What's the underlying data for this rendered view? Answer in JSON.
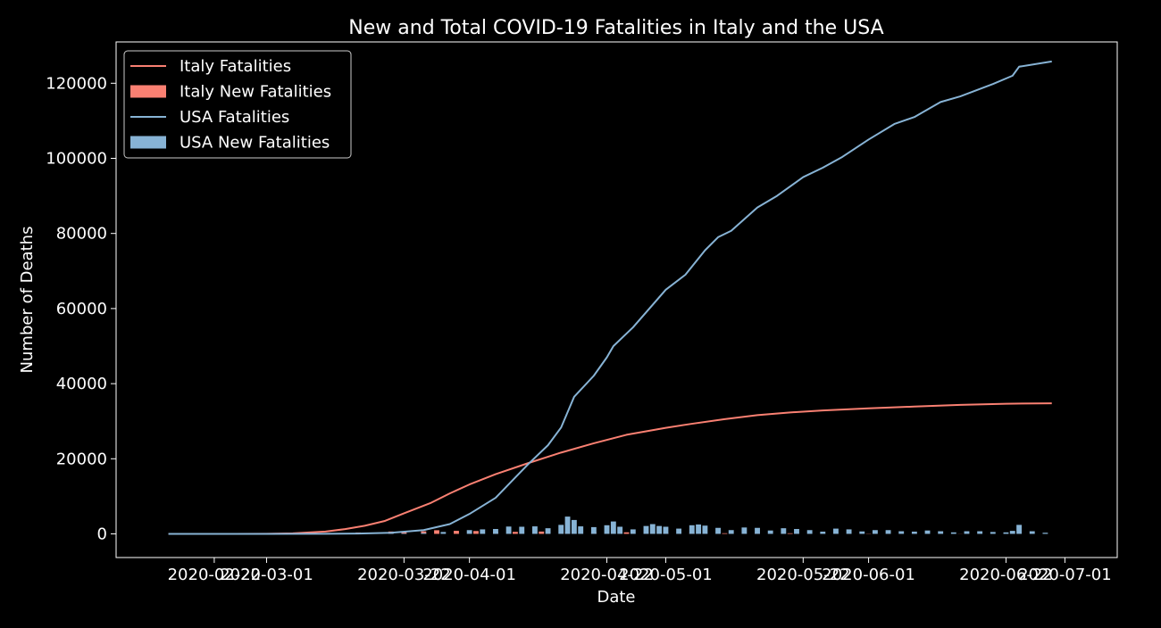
{
  "chart_data": {
    "type": "line",
    "title": "New and Total COVID-19 Fatalities in Italy and the USA",
    "xlabel": "Date",
    "ylabel": "Number of Deaths",
    "x_range": [
      "2020-02-07",
      "2020-07-09"
    ],
    "ylim": [
      -6300,
      131000
    ],
    "x_ticks": [
      "2020-02-22",
      "2020-03-01",
      "2020-03-22",
      "2020-04-01",
      "2020-04-22",
      "2020-05-01",
      "2020-05-22",
      "2020-06-01",
      "2020-06-22",
      "2020-07-01"
    ],
    "y_ticks": [
      0,
      20000,
      40000,
      60000,
      80000,
      100000,
      120000
    ],
    "grid": false,
    "legend_position": "top-left",
    "colors": {
      "italy": "#fa8072",
      "usa": "#87b3d5",
      "background": "#000000",
      "text": "#ffffff"
    },
    "legend": [
      {
        "label": "Italy Fatalities",
        "kind": "line",
        "color": "#fa8072"
      },
      {
        "label": "Italy New Fatalities",
        "kind": "bar",
        "color": "#fa8072"
      },
      {
        "label": "USA Fatalities",
        "kind": "line",
        "color": "#87b3d5"
      },
      {
        "label": "USA New Fatalities",
        "kind": "bar",
        "color": "#87b3d5"
      }
    ],
    "series": [
      {
        "name": "Italy Fatalities",
        "type": "line",
        "color": "#fa8072",
        "points": [
          [
            "2020-02-15",
            0
          ],
          [
            "2020-02-25",
            10
          ],
          [
            "2020-03-01",
            34
          ],
          [
            "2020-03-05",
            148
          ],
          [
            "2020-03-10",
            631
          ],
          [
            "2020-03-13",
            1266
          ],
          [
            "2020-03-16",
            2158
          ],
          [
            "2020-03-19",
            3405
          ],
          [
            "2020-03-22",
            5476
          ],
          [
            "2020-03-26",
            8165
          ],
          [
            "2020-03-29",
            10779
          ],
          [
            "2020-04-01",
            13155
          ],
          [
            "2020-04-05",
            15887
          ],
          [
            "2020-04-10",
            18849
          ],
          [
            "2020-04-15",
            21645
          ],
          [
            "2020-04-20",
            24114
          ],
          [
            "2020-04-25",
            26384
          ],
          [
            "2020-05-01",
            28236
          ],
          [
            "2020-05-05",
            29315
          ],
          [
            "2020-05-10",
            30560
          ],
          [
            "2020-05-15",
            31610
          ],
          [
            "2020-05-20",
            32330
          ],
          [
            "2020-05-25",
            32877
          ],
          [
            "2020-06-01",
            33415
          ],
          [
            "2020-06-08",
            33899
          ],
          [
            "2020-06-15",
            34345
          ],
          [
            "2020-06-22",
            34657
          ],
          [
            "2020-06-29",
            34767
          ]
        ]
      },
      {
        "name": "USA Fatalities",
        "type": "line",
        "color": "#87b3d5",
        "points": [
          [
            "2020-02-15",
            0
          ],
          [
            "2020-03-01",
            1
          ],
          [
            "2020-03-10",
            30
          ],
          [
            "2020-03-15",
            70
          ],
          [
            "2020-03-20",
            300
          ],
          [
            "2020-03-25",
            1000
          ],
          [
            "2020-03-29",
            2600
          ],
          [
            "2020-04-01",
            5300
          ],
          [
            "2020-04-05",
            9600
          ],
          [
            "2020-04-10",
            18600
          ],
          [
            "2020-04-13",
            23600
          ],
          [
            "2020-04-15",
            28300
          ],
          [
            "2020-04-17",
            36500
          ],
          [
            "2020-04-20",
            42100
          ],
          [
            "2020-04-22",
            47000
          ],
          [
            "2020-04-23",
            50000
          ],
          [
            "2020-04-26",
            55000
          ],
          [
            "2020-04-29",
            61000
          ],
          [
            "2020-05-01",
            65000
          ],
          [
            "2020-05-04",
            69000
          ],
          [
            "2020-05-07",
            75500
          ],
          [
            "2020-05-09",
            79000
          ],
          [
            "2020-05-11",
            80700
          ],
          [
            "2020-05-15",
            86900
          ],
          [
            "2020-05-18",
            90000
          ],
          [
            "2020-05-22",
            95000
          ],
          [
            "2020-05-25",
            97500
          ],
          [
            "2020-05-28",
            100400
          ],
          [
            "2020-06-01",
            105000
          ],
          [
            "2020-06-05",
            109200
          ],
          [
            "2020-06-08",
            111000
          ],
          [
            "2020-06-12",
            115000
          ],
          [
            "2020-06-15",
            116500
          ],
          [
            "2020-06-20",
            119800
          ],
          [
            "2020-06-23",
            122000
          ],
          [
            "2020-06-24",
            124400
          ],
          [
            "2020-06-29",
            125800
          ]
        ]
      },
      {
        "name": "Italy New Fatalities",
        "type": "bar",
        "color": "#fa8072",
        "points": [
          [
            "2020-03-10",
            168
          ],
          [
            "2020-03-15",
            368
          ],
          [
            "2020-03-20",
            627
          ],
          [
            "2020-03-22",
            651
          ],
          [
            "2020-03-25",
            683
          ],
          [
            "2020-03-27",
            969
          ],
          [
            "2020-03-30",
            812
          ],
          [
            "2020-04-02",
            760
          ],
          [
            "2020-04-05",
            525
          ],
          [
            "2020-04-08",
            542
          ],
          [
            "2020-04-12",
            619
          ],
          [
            "2020-04-16",
            525
          ],
          [
            "2020-04-20",
            454
          ],
          [
            "2020-04-25",
            415
          ],
          [
            "2020-05-01",
            269
          ],
          [
            "2020-05-05",
            236
          ],
          [
            "2020-05-10",
            165
          ],
          [
            "2020-05-15",
            242
          ],
          [
            "2020-05-20",
            161
          ],
          [
            "2020-05-25",
            92
          ],
          [
            "2020-06-01",
            60
          ],
          [
            "2020-06-08",
            65
          ],
          [
            "2020-06-15",
            26
          ],
          [
            "2020-06-22",
            23
          ],
          [
            "2020-06-28",
            8
          ]
        ]
      },
      {
        "name": "USA New Fatalities",
        "type": "bar",
        "color": "#87b3d5",
        "points": [
          [
            "2020-03-15",
            20
          ],
          [
            "2020-03-20",
            100
          ],
          [
            "2020-03-22",
            120
          ],
          [
            "2020-03-25",
            250
          ],
          [
            "2020-03-28",
            500
          ],
          [
            "2020-04-01",
            1000
          ],
          [
            "2020-04-03",
            1200
          ],
          [
            "2020-04-05",
            1300
          ],
          [
            "2020-04-07",
            1950
          ],
          [
            "2020-04-09",
            1900
          ],
          [
            "2020-04-11",
            2000
          ],
          [
            "2020-04-13",
            1500
          ],
          [
            "2020-04-15",
            2400
          ],
          [
            "2020-04-16",
            4600
          ],
          [
            "2020-04-17",
            3700
          ],
          [
            "2020-04-18",
            2000
          ],
          [
            "2020-04-20",
            1800
          ],
          [
            "2020-04-22",
            2300
          ],
          [
            "2020-04-23",
            3300
          ],
          [
            "2020-04-24",
            1900
          ],
          [
            "2020-04-26",
            1200
          ],
          [
            "2020-04-28",
            2100
          ],
          [
            "2020-04-29",
            2600
          ],
          [
            "2020-04-30",
            2100
          ],
          [
            "2020-05-01",
            1900
          ],
          [
            "2020-05-03",
            1400
          ],
          [
            "2020-05-05",
            2300
          ],
          [
            "2020-05-06",
            2500
          ],
          [
            "2020-05-07",
            2200
          ],
          [
            "2020-05-09",
            1600
          ],
          [
            "2020-05-11",
            1000
          ],
          [
            "2020-05-13",
            1700
          ],
          [
            "2020-05-15",
            1600
          ],
          [
            "2020-05-17",
            900
          ],
          [
            "2020-05-19",
            1500
          ],
          [
            "2020-05-21",
            1300
          ],
          [
            "2020-05-23",
            1000
          ],
          [
            "2020-05-25",
            600
          ],
          [
            "2020-05-27",
            1400
          ],
          [
            "2020-05-29",
            1200
          ],
          [
            "2020-05-31",
            650
          ],
          [
            "2020-06-02",
            1000
          ],
          [
            "2020-06-04",
            1000
          ],
          [
            "2020-06-06",
            700
          ],
          [
            "2020-06-08",
            600
          ],
          [
            "2020-06-10",
            900
          ],
          [
            "2020-06-12",
            700
          ],
          [
            "2020-06-14",
            400
          ],
          [
            "2020-06-16",
            700
          ],
          [
            "2020-06-18",
            700
          ],
          [
            "2020-06-20",
            500
          ],
          [
            "2020-06-22",
            400
          ],
          [
            "2020-06-23",
            800
          ],
          [
            "2020-06-24",
            2400
          ],
          [
            "2020-06-26",
            700
          ],
          [
            "2020-06-28",
            300
          ]
        ]
      }
    ]
  }
}
